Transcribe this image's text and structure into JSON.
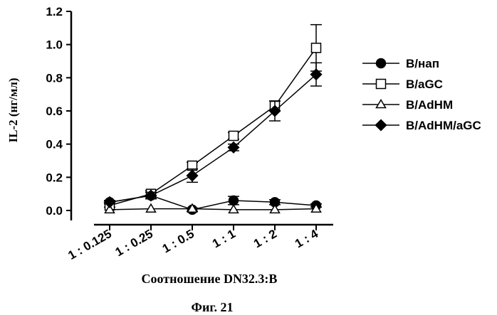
{
  "chart_data": {
    "type": "line",
    "title": "",
    "xlabel": "Соотношение DN32.3:B",
    "ylabel": "IL-2 (нг/мл)",
    "caption": "Фиг. 21",
    "categories": [
      "1 : 0.125",
      "1 : 0.25",
      "1 : 0.5",
      "1 : 1",
      "1 : 2",
      "1 : 4"
    ],
    "ylim": [
      0.0,
      1.2
    ],
    "yticks": [
      "0.0",
      "0.2",
      "0.4",
      "0.6",
      "0.8",
      "1.0",
      "1.2"
    ],
    "grid": false,
    "legend_position": "right",
    "series": [
      {
        "name": "B/нап",
        "marker": "circle-filled",
        "values": [
          0.05,
          0.09,
          0.005,
          0.06,
          0.05,
          0.03
        ],
        "errors": [
          0.01,
          0.02,
          0.01,
          0.025,
          0.015,
          0.01
        ]
      },
      {
        "name": "B/aGC",
        "marker": "square-open",
        "values": [
          0.03,
          0.1,
          0.27,
          0.45,
          0.63,
          0.98
        ],
        "errors": [
          0.01,
          0.02,
          0.02,
          0.02,
          0.03,
          0.14
        ]
      },
      {
        "name": "B/AdHM",
        "marker": "triangle-open",
        "values": [
          0.005,
          0.01,
          0.01,
          0.005,
          0.005,
          0.01
        ],
        "errors": [
          0.005,
          0.005,
          0.005,
          0.005,
          0.005,
          0.005
        ]
      },
      {
        "name": "B/AdHM/aGC",
        "marker": "diamond-filled",
        "values": [
          0.05,
          0.09,
          0.21,
          0.38,
          0.6,
          0.82
        ],
        "errors": [
          0.01,
          0.02,
          0.04,
          0.02,
          0.06,
          0.07
        ]
      }
    ]
  }
}
